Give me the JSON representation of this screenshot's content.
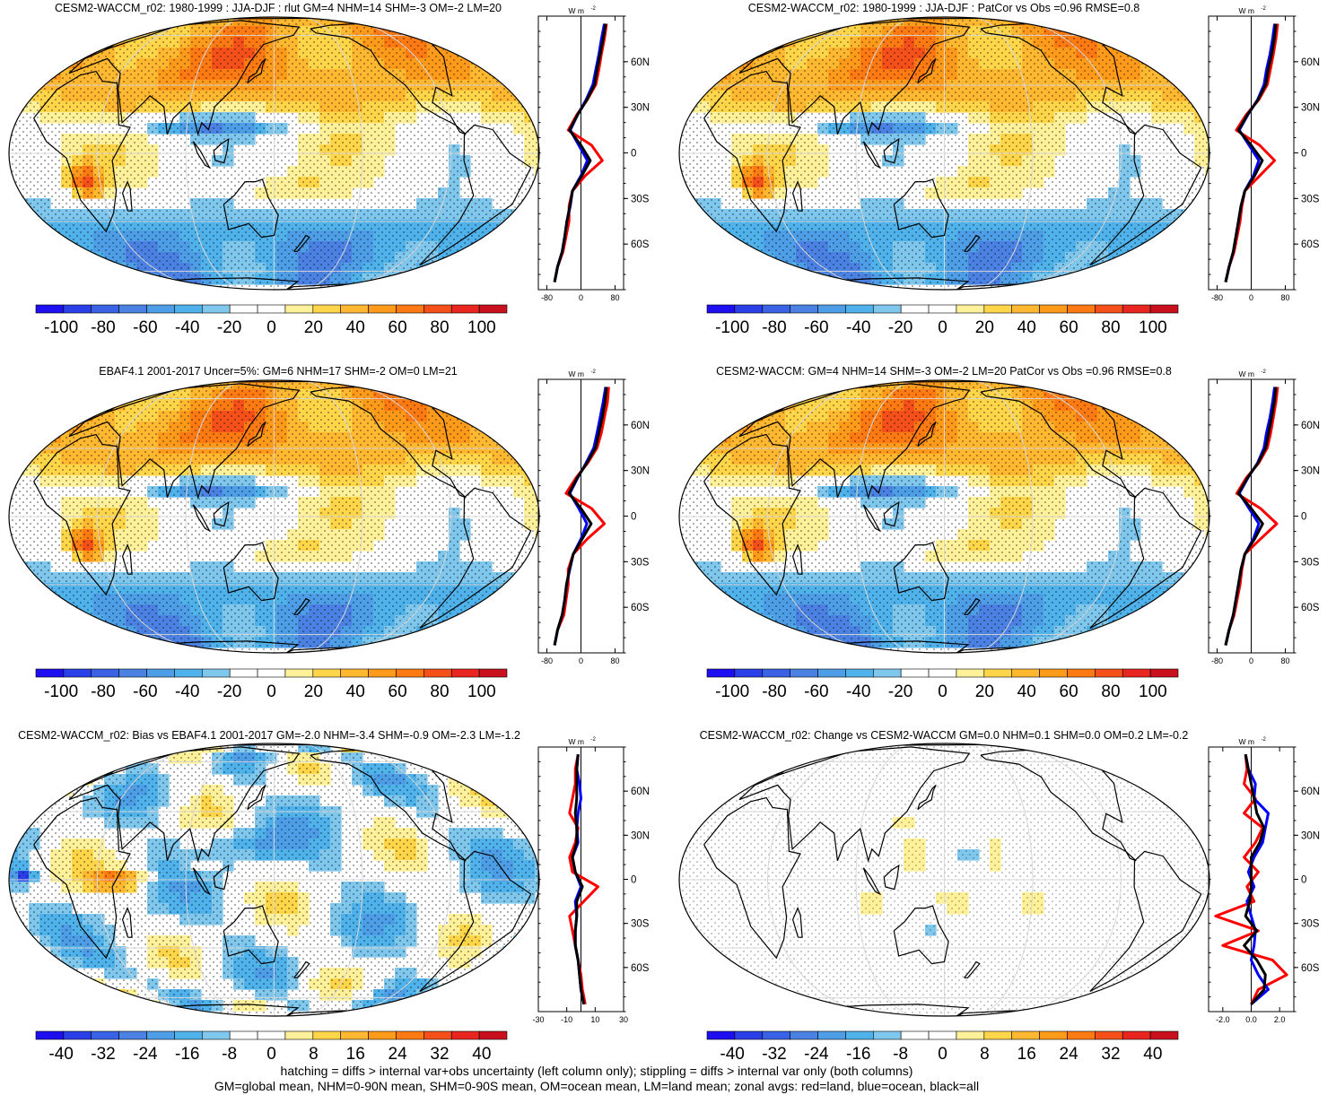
{
  "colors": {
    "palette": [
      "#1e0ff0",
      "#2b3fe8",
      "#3a62e4",
      "#4a81e2",
      "#4d9ee6",
      "#4fb2ea",
      "#7fc7ec",
      "#ffffff",
      "#ffffff",
      "#fff199",
      "#ffd54a",
      "#ffb830",
      "#ff9a1a",
      "#ff7a12",
      "#f5501a",
      "#e8261f",
      "#c8101e"
    ],
    "land_line": "#000000",
    "zonal_land": "#ff0000",
    "zonal_ocean": "#0000ff",
    "zonal_all": "#000000"
  },
  "footer": {
    "line1": "hatching = diffs > internal var+obs uncertainty (left column only); stippling = diffs > internal var only (both columns)",
    "line2": "GM=global mean, NHM=0-90N mean, SHM=0-90S mean, OM=ocean mean, LM=land mean; zonal avgs: red=land, blue=ocean, black=all"
  },
  "chart_data": [
    {
      "type": "map",
      "title": "CESM2-WACCM_r02: 1980-1999 : JJA-DJF : rlut GM=4 NHM=14 SHM=-3 OM=-2 LM=20",
      "colorbar_ticks": [
        "-100",
        "-80",
        "-60",
        "-40",
        "-20",
        "0",
        "20",
        "40",
        "60",
        "80",
        "100"
      ],
      "zonal": {
        "unit": "W m",
        "unit_sup": "-2",
        "lat_ticks": [
          "60N",
          "30N",
          "0",
          "30S",
          "60S"
        ],
        "x_ticks": [
          "-80",
          "0",
          "80"
        ],
        "xlim": [
          -100,
          100
        ],
        "lat": [
          -85,
          -75,
          -65,
          -55,
          -45,
          -35,
          -25,
          -15,
          -5,
          5,
          15,
          25,
          35,
          45,
          55,
          65,
          75,
          85
        ],
        "land": [
          -62,
          -55,
          -42,
          -35,
          -28,
          -28,
          -20,
          10,
          50,
          25,
          -30,
          -10,
          15,
          35,
          42,
          48,
          55,
          60
        ],
        "ocean": [
          -62,
          -55,
          -44,
          -38,
          -33,
          -25,
          -20,
          0,
          15,
          -5,
          -25,
          -8,
          12,
          28,
          35,
          42,
          48,
          55
        ],
        "all": [
          -62,
          -55,
          -44,
          -38,
          -33,
          -26,
          -20,
          2,
          22,
          0,
          -27,
          -8,
          14,
          32,
          38,
          45,
          52,
          58
        ]
      }
    },
    {
      "type": "map",
      "title": "CESM2-WACCM_r02: 1980-1999 : JJA-DJF : PatCor vs Obs =0.96 RMSE=0.8",
      "colorbar_ticks": [
        "-100",
        "-80",
        "-60",
        "-40",
        "-20",
        "0",
        "20",
        "40",
        "60",
        "80",
        "100"
      ],
      "zonal": {
        "unit": "W m",
        "unit_sup": "-2",
        "lat_ticks": [
          "60N",
          "30N",
          "0",
          "30S",
          "60S"
        ],
        "x_ticks": [
          "-80",
          "0",
          "80"
        ],
        "xlim": [
          -100,
          100
        ],
        "lat": [
          -85,
          -75,
          -65,
          -55,
          -45,
          -35,
          -25,
          -15,
          -5,
          5,
          15,
          25,
          35,
          45,
          55,
          65,
          75,
          85
        ],
        "land": [
          -60,
          -52,
          -40,
          -33,
          -26,
          -22,
          -15,
          20,
          55,
          20,
          -35,
          -12,
          18,
          38,
          45,
          52,
          58,
          62
        ],
        "ocean": [
          -60,
          -52,
          -42,
          -36,
          -30,
          -24,
          -15,
          5,
          18,
          -5,
          -28,
          -8,
          15,
          30,
          36,
          44,
          50,
          55
        ],
        "all": [
          -60,
          -52,
          -42,
          -36,
          -30,
          -24,
          -15,
          8,
          26,
          0,
          -30,
          -9,
          16,
          34,
          40,
          48,
          54,
          58
        ]
      }
    },
    {
      "type": "map",
      "title": "EBAF4.1 2001-2017 Uncer=5%: GM=6 NHM=17 SHM=-2 OM=0 LM=21",
      "colorbar_ticks": [
        "-100",
        "-80",
        "-60",
        "-40",
        "-20",
        "0",
        "20",
        "40",
        "60",
        "80",
        "100"
      ],
      "zonal": {
        "unit": "W m",
        "unit_sup": "-2",
        "lat_ticks": [
          "60N",
          "30N",
          "0",
          "30S",
          "60S"
        ],
        "x_ticks": [
          "-80",
          "0",
          "80"
        ],
        "xlim": [
          -100,
          100
        ],
        "lat": [
          -85,
          -75,
          -65,
          -55,
          -45,
          -35,
          -25,
          -15,
          -5,
          5,
          15,
          25,
          35,
          45,
          55,
          65,
          75,
          85
        ],
        "land": [
          -62,
          -55,
          -40,
          -35,
          -30,
          -30,
          -18,
          15,
          55,
          25,
          -35,
          -12,
          16,
          38,
          48,
          55,
          62,
          65
        ],
        "ocean": [
          -62,
          -55,
          -44,
          -38,
          -34,
          -26,
          -18,
          0,
          14,
          -5,
          -26,
          -8,
          12,
          30,
          38,
          45,
          52,
          58
        ],
        "all": [
          -62,
          -55,
          -44,
          -38,
          -34,
          -27,
          -18,
          3,
          24,
          0,
          -28,
          -9,
          14,
          34,
          42,
          50,
          56,
          60
        ]
      }
    },
    {
      "type": "map",
      "title": "CESM2-WACCM: GM=4 NHM=14 SHM=-3 OM=-2 LM=20 PatCor vs Obs =0.96 RMSE=0.8",
      "colorbar_ticks": [
        "-100",
        "-80",
        "-60",
        "-40",
        "-20",
        "0",
        "20",
        "40",
        "60",
        "80",
        "100"
      ],
      "zonal": {
        "unit": "W m",
        "unit_sup": "-2",
        "lat_ticks": [
          "60N",
          "30N",
          "0",
          "30S",
          "60S"
        ],
        "x_ticks": [
          "-80",
          "0",
          "80"
        ],
        "xlim": [
          -100,
          100
        ],
        "lat": [
          -85,
          -75,
          -65,
          -55,
          -45,
          -35,
          -25,
          -15,
          -5,
          5,
          15,
          25,
          35,
          45,
          55,
          65,
          75,
          85
        ],
        "land": [
          -60,
          -52,
          -40,
          -33,
          -26,
          -22,
          -15,
          22,
          60,
          22,
          -34,
          -12,
          18,
          38,
          46,
          52,
          58,
          62
        ],
        "ocean": [
          -60,
          -52,
          -42,
          -36,
          -30,
          -24,
          -15,
          5,
          18,
          -5,
          -28,
          -8,
          15,
          30,
          36,
          44,
          50,
          55
        ],
        "all": [
          -60,
          -52,
          -42,
          -36,
          -30,
          -24,
          -15,
          8,
          27,
          0,
          -30,
          -9,
          16,
          34,
          41,
          48,
          54,
          58
        ]
      }
    },
    {
      "type": "map",
      "title": "CESM2-WACCM_r02: Bias vs EBAF4.1 2001-2017 GM=-2.0 NHM=-3.4 SHM=-0.9 OM=-2.3 LM=-1.2",
      "colorbar_ticks": [
        "-40",
        "-32",
        "-24",
        "-16",
        "-8",
        "0",
        "8",
        "16",
        "24",
        "32",
        "40"
      ],
      "zonal": {
        "unit": "W m",
        "unit_sup": "-2",
        "lat_ticks": [
          "60N",
          "30N",
          "0",
          "30S",
          "60S"
        ],
        "x_ticks": [
          "-30",
          "-10",
          "10",
          "30"
        ],
        "xlim": [
          -30,
          30
        ],
        "lat": [
          -85,
          -75,
          -65,
          -55,
          -45,
          -35,
          -25,
          -15,
          -5,
          5,
          15,
          25,
          35,
          45,
          55,
          65,
          75,
          85
        ],
        "land": [
          3,
          1,
          0,
          -2,
          -4,
          -6,
          -8,
          2,
          12,
          -6,
          -8,
          -4,
          -2,
          -8,
          -6,
          -4,
          -4,
          -2
        ],
        "ocean": [
          2,
          0,
          -1,
          -2,
          -4,
          -4,
          -3,
          -4,
          0,
          -4,
          -6,
          -2,
          -3,
          -2,
          0,
          -1,
          -3,
          -2
        ],
        "all": [
          2,
          0,
          -1,
          -2,
          -4,
          -4,
          -3,
          -3,
          1,
          -4,
          -6,
          -3,
          -3,
          -4,
          -3,
          -3,
          -3,
          -2
        ]
      }
    },
    {
      "type": "map",
      "title": "CESM2-WACCM_r02: Change vs CESM2-WACCM GM=0.0 NHM=0.1 SHM=0.0 OM=0.2 LM=-0.2",
      "colorbar_ticks": [
        "-40",
        "-32",
        "-24",
        "-16",
        "-8",
        "0",
        "8",
        "16",
        "24",
        "32",
        "40"
      ],
      "zonal": {
        "unit": "W m",
        "unit_sup": "-2",
        "lat_ticks": [
          "60N",
          "30N",
          "0",
          "30S",
          "60S"
        ],
        "x_ticks": [
          "-2.0",
          "0.0",
          "2.0"
        ],
        "xlim": [
          -3,
          3
        ],
        "lat": [
          -85,
          -75,
          -65,
          -55,
          -45,
          -35,
          -25,
          -15,
          -5,
          5,
          15,
          25,
          35,
          45,
          55,
          65,
          75,
          85
        ],
        "land": [
          0,
          0.5,
          2.5,
          1.5,
          -2,
          0.5,
          -2.5,
          0.2,
          -0.3,
          0.5,
          -0.5,
          0.3,
          0.8,
          -0.5,
          0.3,
          -0.5,
          -0.3,
          -0.4
        ],
        "ocean": [
          0,
          1.2,
          0.5,
          0,
          0.2,
          0.3,
          0,
          -0.3,
          0.2,
          -0.2,
          0.2,
          0.8,
          1,
          1.2,
          0.2,
          0.3,
          -0.2,
          -0.4
        ],
        "all": [
          0,
          0.9,
          1,
          0.4,
          -0.5,
          0.4,
          -0.4,
          -0.1,
          0,
          0,
          0,
          0.6,
          0.9,
          0.4,
          0.2,
          0,
          -0.2,
          -0.4
        ]
      }
    }
  ]
}
